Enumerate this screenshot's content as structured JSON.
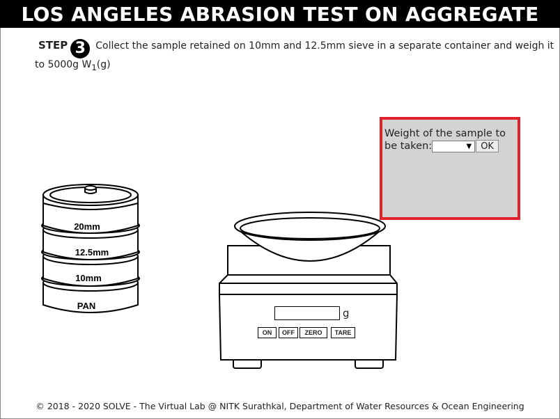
{
  "title": "LOS ANGELES ABRASION TEST ON AGGREGATE",
  "step": {
    "label": "STEP",
    "number": "3",
    "instruction": "Collect the sample retained on 10mm and 12.5mm sieve in a separate container and weigh it to 5000g W",
    "subscript": "1",
    "suffix": "(g)"
  },
  "panel": {
    "prompt": "Weight of the sample to be taken:",
    "select_value": "",
    "ok_label": "OK",
    "border_color": "#e0212b",
    "background": "#d3d3d3"
  },
  "sieves": {
    "labels": [
      "20mm",
      "12.5mm",
      "10mm",
      "PAN"
    ]
  },
  "balance": {
    "display_value": "",
    "unit": "g",
    "buttons": [
      "ON",
      "OFF",
      "ZERO",
      "TARE"
    ]
  },
  "footer": "© 2018 - 2020 SOLVE - The Virtual Lab @ NITK Surathkal, Department of Water Resources & Ocean Engineering"
}
